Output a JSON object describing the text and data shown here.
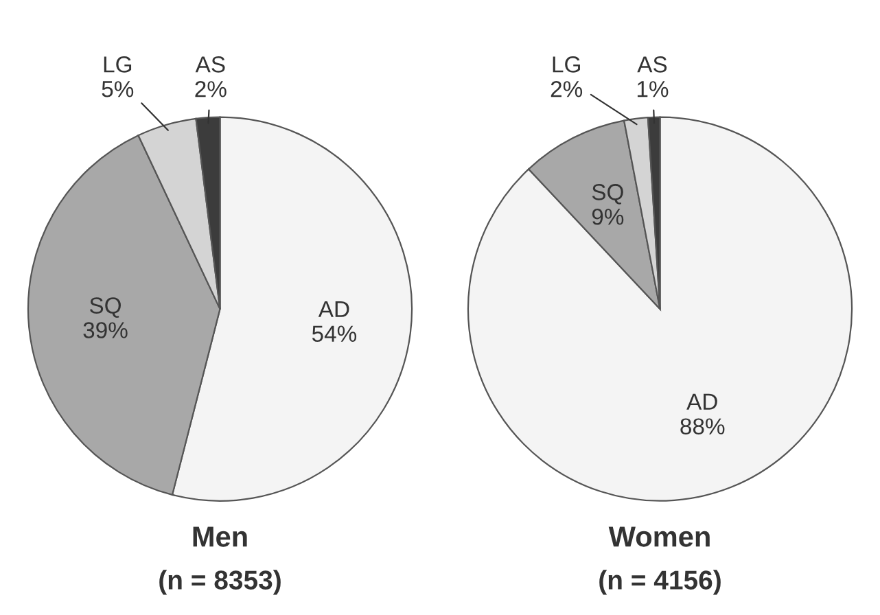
{
  "chart_data": [
    {
      "type": "pie",
      "title": "Men",
      "subtitle": "(n = 8353)",
      "categories": [
        "AD",
        "SQ",
        "LG",
        "AS"
      ],
      "values": [
        54,
        39,
        5,
        2
      ],
      "value_labels": [
        "54%",
        "39%",
        "5%",
        "2%"
      ],
      "colors": [
        "#f4f4f4",
        "#a8a8a8",
        "#d4d4d4",
        "#3c3c3c"
      ]
    },
    {
      "type": "pie",
      "title": "Women",
      "subtitle": "(n = 4156)",
      "categories": [
        "AD",
        "SQ",
        "LG",
        "AS"
      ],
      "values": [
        88,
        9,
        2,
        1
      ],
      "value_labels": [
        "88%",
        "9%",
        "2%",
        "1%"
      ],
      "colors": [
        "#f4f4f4",
        "#a8a8a8",
        "#d4d4d4",
        "#3c3c3c"
      ]
    }
  ]
}
